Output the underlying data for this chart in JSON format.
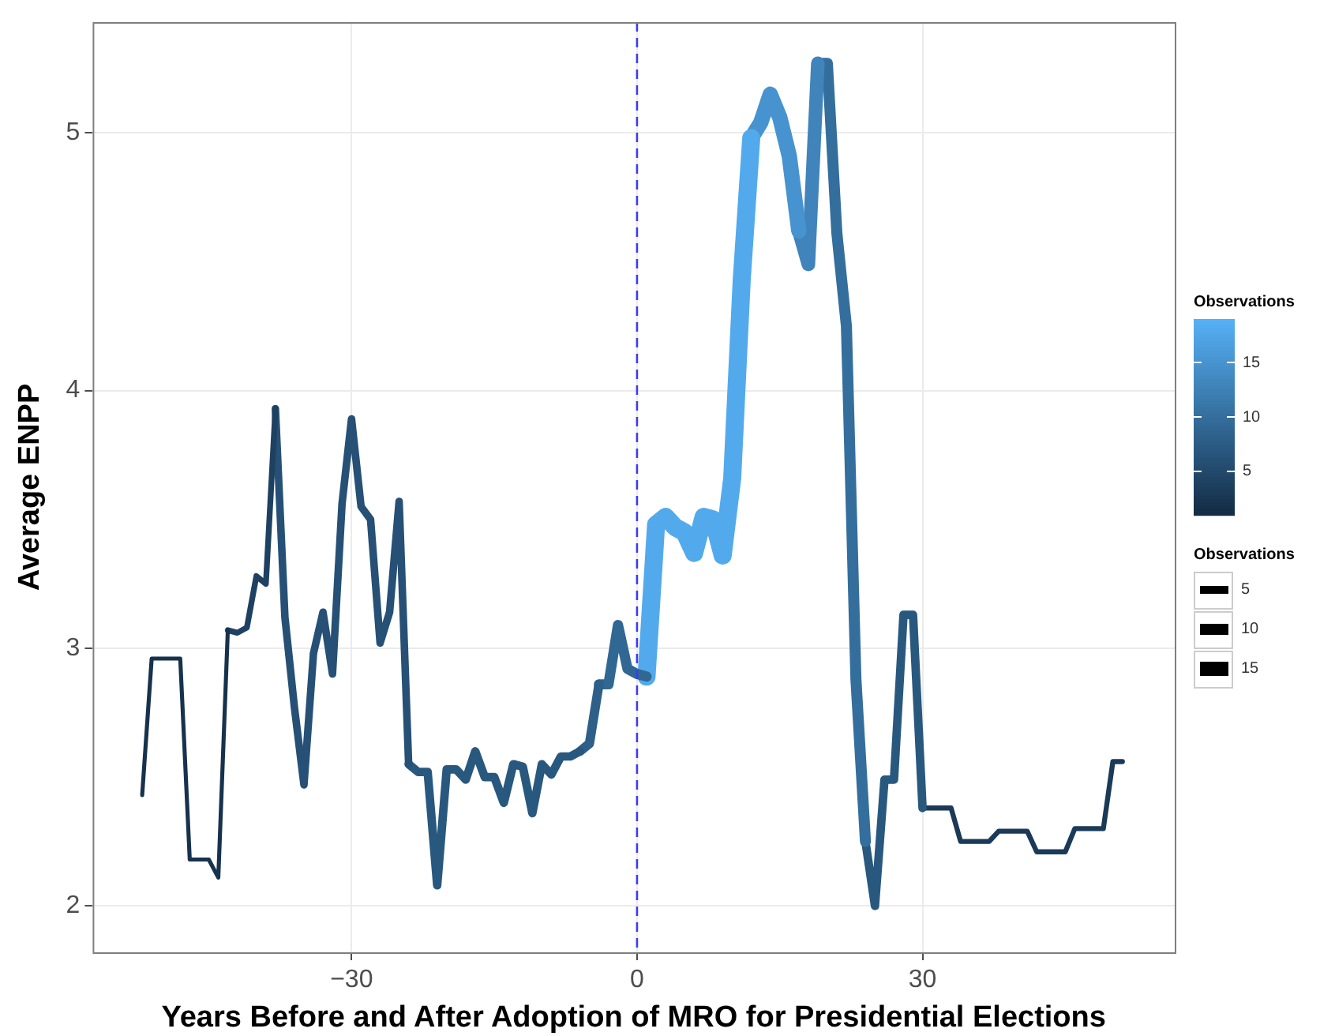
{
  "chart_data": {
    "type": "line",
    "xlabel": "Years Before and After Adoption of MRO for Presidential Elections",
    "ylabel": "Average ENPP",
    "series": [
      {
        "x": [
          -52,
          -51,
          -48,
          -47,
          -45,
          -44,
          -43
        ],
        "values": [
          2.43,
          2.96,
          2.96,
          2.18,
          2.18,
          2.11,
          3.07
        ],
        "color": "#17324d"
      },
      {
        "x": [
          -43,
          -42,
          -41,
          -40,
          -39,
          -38
        ],
        "values": [
          3.07,
          3.06,
          3.08,
          3.28,
          3.25,
          3.93
        ],
        "color": "#1e4161"
      },
      {
        "x": [
          -38,
          -37,
          -36,
          -35,
          -34,
          -33,
          -32,
          -31,
          -30,
          -29,
          -28,
          -27,
          -26,
          -25,
          -24
        ],
        "values": [
          3.93,
          3.12,
          2.77,
          2.47,
          2.98,
          3.14,
          2.9,
          3.56,
          3.89,
          3.55,
          3.5,
          3.02,
          3.14,
          3.57,
          2.55
        ],
        "color": "#265075"
      },
      {
        "x": [
          -24,
          -23,
          -22,
          -21,
          -20,
          -19,
          -18,
          -17,
          -16,
          -15,
          -14,
          -13,
          -12,
          -11,
          -10,
          -9,
          -8,
          -7,
          -6
        ],
        "values": [
          2.55,
          2.52,
          2.52,
          2.08,
          2.53,
          2.53,
          2.49,
          2.6,
          2.5,
          2.5,
          2.4,
          2.55,
          2.54,
          2.36,
          2.55,
          2.51,
          2.58,
          2.58,
          2.6
        ],
        "color": "#29587f"
      },
      {
        "x": [
          -6,
          -5,
          -4
        ],
        "values": [
          2.6,
          2.63,
          2.86
        ],
        "color": "#2d5f89"
      },
      {
        "x": [
          -4,
          -3,
          -2,
          -1,
          0,
          1
        ],
        "values": [
          2.86,
          2.86,
          3.09,
          2.92,
          2.9,
          2.89
        ],
        "color": "#316793"
      },
      {
        "x": [
          1,
          2,
          3,
          4,
          5,
          6,
          7,
          8,
          9,
          10,
          11,
          12
        ],
        "values": [
          2.89,
          3.48,
          3.51,
          3.47,
          3.45,
          3.37,
          3.51,
          3.5,
          3.36,
          3.66,
          4.43,
          4.98
        ],
        "color": "#52aaed"
      },
      {
        "x": [
          12,
          13,
          14,
          15,
          16,
          17
        ],
        "values": [
          4.98,
          5.04,
          5.15,
          5.06,
          4.91,
          4.62
        ],
        "color": "#4793cf"
      },
      {
        "x": [
          17,
          18,
          19
        ],
        "values": [
          4.62,
          4.49,
          5.27
        ],
        "color": "#4084bb"
      },
      {
        "x": [
          19,
          20,
          21,
          22,
          23,
          24
        ],
        "values": [
          5.27,
          5.27,
          4.61,
          4.25,
          2.88,
          2.25
        ],
        "color": "#346e9d"
      },
      {
        "x": [
          24,
          25,
          26,
          27,
          28,
          29,
          30
        ],
        "values": [
          2.25,
          2.0,
          2.49,
          2.49,
          3.13,
          3.13,
          2.38
        ],
        "color": "#29587f"
      },
      {
        "x": [
          30,
          33,
          34,
          37,
          38,
          41,
          42,
          45,
          46,
          49,
          50,
          51
        ],
        "values": [
          2.38,
          2.38,
          2.25,
          2.25,
          2.29,
          2.29,
          2.21,
          2.21,
          2.3,
          2.3,
          2.56,
          2.56
        ],
        "color": "#1a3a57"
      }
    ],
    "xlim": [
      -57.2,
      56.5
    ],
    "ylim": [
      1.82,
      5.43
    ],
    "xticks": [
      -30,
      0,
      30
    ],
    "yticks": [
      2,
      3,
      4,
      5
    ],
    "grid": true,
    "marker": "none",
    "clabel": "Observations",
    "clim": [
      1,
      19
    ],
    "cticks": [
      5,
      10,
      15
    ],
    "legend_title": "Observations",
    "annotations": [
      "5",
      "10",
      "15"
    ],
    "ref_lines": [
      {
        "axis": "x",
        "value": 0,
        "label": null,
        "color": "#3b3bf5",
        "line_style": "dashed"
      }
    ]
  }
}
